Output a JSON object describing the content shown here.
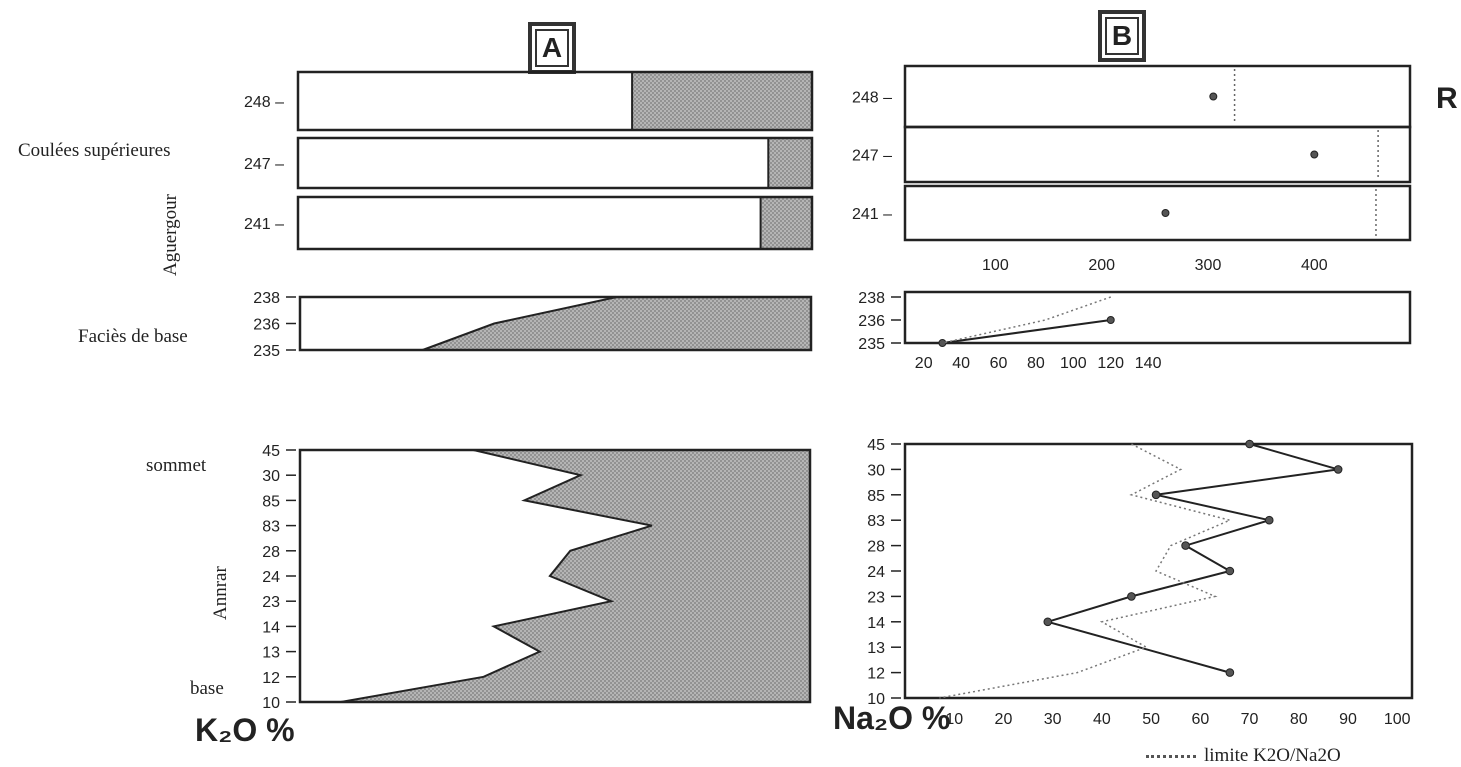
{
  "panel_labels": {
    "a": "A",
    "b": "B"
  },
  "side_labels": {
    "coulees": "Coulées supérieures",
    "aguergour": "Aguergour",
    "facies": "Faciès de base",
    "sommet": "sommet",
    "annrar": "Annrar",
    "base": "base"
  },
  "edge_text": "R",
  "colors": {
    "ink": "#222222",
    "fill_dots": "#a8a8a8"
  },
  "chart_data": [
    {
      "type": "area",
      "panel": "A",
      "group": "Coulées supérieures",
      "xlabel": "K₂O %",
      "rows": [
        {
          "label": "248",
          "boundary": 0.65
        },
        {
          "label": "247",
          "boundary": 0.915
        },
        {
          "label": "241",
          "boundary": 0.9
        }
      ]
    },
    {
      "type": "area",
      "panel": "A",
      "group": "Faciès de base",
      "rows": [
        {
          "label": "238",
          "boundary": 0.62
        },
        {
          "label": "236",
          "boundary": 0.38
        },
        {
          "label": "235",
          "boundary": 0.24
        }
      ]
    },
    {
      "type": "area",
      "panel": "A",
      "group": "Annrar",
      "rows": [
        {
          "label": "45",
          "boundary": 0.34
        },
        {
          "label": "30",
          "boundary": 0.55
        },
        {
          "label": "85",
          "boundary": 0.44
        },
        {
          "label": "83",
          "boundary": 0.69
        },
        {
          "label": "28",
          "boundary": 0.53
        },
        {
          "label": "24",
          "boundary": 0.49
        },
        {
          "label": "23",
          "boundary": 0.61
        },
        {
          "label": "14",
          "boundary": 0.38
        },
        {
          "label": "13",
          "boundary": 0.47
        },
        {
          "label": "12",
          "boundary": 0.36
        },
        {
          "label": "10",
          "boundary": 0.08
        }
      ]
    },
    {
      "type": "scatter",
      "panel": "B",
      "group": "Coulées supérieures",
      "x_ticks": [
        100,
        200,
        300,
        400
      ],
      "xlim": [
        15,
        490
      ],
      "rows": [
        {
          "label": "248",
          "value": 305,
          "limit": 325
        },
        {
          "label": "247",
          "value": 400,
          "limit": 460
        },
        {
          "label": "241",
          "value": 260,
          "limit": 458
        }
      ]
    },
    {
      "type": "line",
      "panel": "B",
      "group": "Faciès de base",
      "x_ticks": [
        20,
        40,
        60,
        80,
        100,
        120,
        140
      ],
      "xlim": [
        10,
        280
      ],
      "series": [
        {
          "name": "",
          "points": [
            {
              "y": "236",
              "x": 120
            },
            {
              "y": "235",
              "x": 30
            }
          ]
        },
        {
          "name": "limite K2O/Na2O",
          "points": [
            {
              "y": "238",
              "x": 120
            },
            {
              "y": "236",
              "x": 85
            },
            {
              "y": "235",
              "x": 30
            }
          ]
        }
      ]
    },
    {
      "type": "line",
      "panel": "B",
      "group": "Annrar",
      "xlabel": "Na₂O %",
      "x_ticks": [
        10,
        20,
        30,
        40,
        50,
        60,
        70,
        80,
        90,
        100
      ],
      "xlim": [
        0,
        103
      ],
      "rows": [
        "45",
        "30",
        "85",
        "83",
        "28",
        "24",
        "23",
        "14",
        "13",
        "12",
        "10"
      ],
      "series": [
        {
          "name": "",
          "points": [
            {
              "y": "45",
              "x": 70
            },
            {
              "y": "30",
              "x": 88
            },
            {
              "y": "85",
              "x": 51
            },
            {
              "y": "83",
              "x": 74
            },
            {
              "y": "28",
              "x": 57
            },
            {
              "y": "24",
              "x": 66
            },
            {
              "y": "23",
              "x": 46
            },
            {
              "y": "14",
              "x": 29
            },
            {
              "y": "12",
              "x": 66
            }
          ]
        },
        {
          "name": "limite K2O/Na2O",
          "points": [
            {
              "y": "45",
              "x": 46
            },
            {
              "y": "30",
              "x": 56
            },
            {
              "y": "85",
              "x": 46
            },
            {
              "y": "83",
              "x": 66
            },
            {
              "y": "28",
              "x": 54
            },
            {
              "y": "24",
              "x": 51
            },
            {
              "y": "23",
              "x": 63
            },
            {
              "y": "14",
              "x": 40
            },
            {
              "y": "13",
              "x": 49
            },
            {
              "y": "12",
              "x": 35
            },
            {
              "y": "10",
              "x": 7
            }
          ]
        }
      ],
      "legend": "limite K2O/Na2O"
    }
  ]
}
